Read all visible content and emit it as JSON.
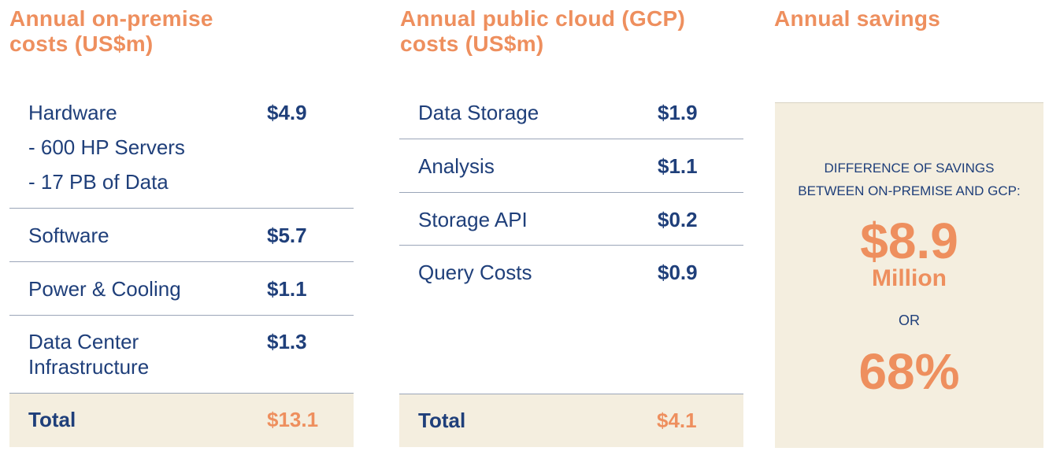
{
  "colors": {
    "accent": "#EE8F5E",
    "text": "#1F3F7A",
    "panel": "#F4EEDF",
    "divider": "#9aa5b8"
  },
  "on_premise": {
    "heading_line1": "Annual on-premise",
    "heading_line2": "costs (US$m)",
    "rows": [
      {
        "label": "Hardware",
        "sub": [
          "- 600 HP Servers",
          "- 17 PB of Data"
        ],
        "value": "$4.9"
      },
      {
        "label": "Software",
        "value": "$5.7"
      },
      {
        "label": "Power & Cooling",
        "value": "$1.1"
      },
      {
        "label_line1": "Data Center",
        "label_line2": "Infrastructure",
        "value": "$1.3"
      }
    ],
    "total_label": "Total",
    "total_value": "$13.1"
  },
  "cloud": {
    "heading_line1": "Annual public cloud (GCP)",
    "heading_line2": "costs (US$m)",
    "rows": [
      {
        "label": "Data Storage",
        "value": "$1.9"
      },
      {
        "label": "Analysis",
        "value": "$1.1"
      },
      {
        "label": "Storage API",
        "value": "$0.2"
      },
      {
        "label": "Query Costs",
        "value": "$0.9"
      }
    ],
    "total_label": "Total",
    "total_value": "$4.1"
  },
  "savings": {
    "heading": "Annual savings",
    "caption_line1": "DIFFERENCE OF SAVINGS",
    "caption_line2": "BETWEEN ON-PREMISE AND GCP:",
    "amount": "$8.9",
    "unit": "Million",
    "or": "OR",
    "percent": "68%"
  }
}
